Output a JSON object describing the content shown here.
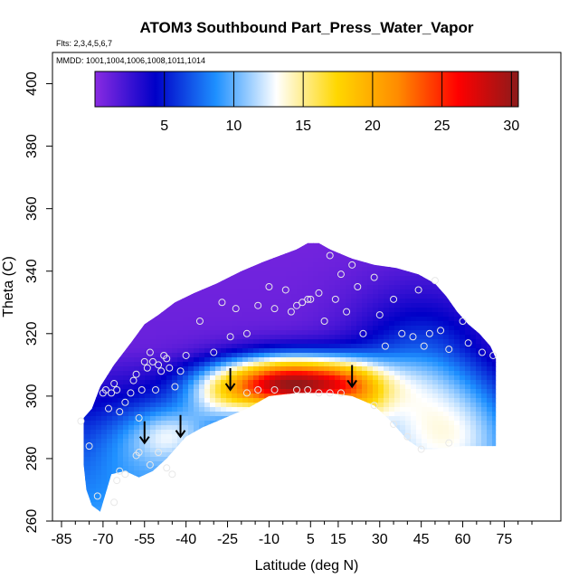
{
  "chart_data": {
    "type": "heatmap",
    "title": "ATOM3 Southbound Part_Press_Water_Vapor",
    "flights_note": "Flts: 2,3,4,5,6,7",
    "dates_note": "MMDD: 1001,1004,1006,1008,1011,1014",
    "xlabel": "Latitude (deg N)",
    "ylabel": "Theta (C)",
    "xlim": [
      -85,
      85
    ],
    "ylim": [
      260,
      410
    ],
    "x_ticks": [
      -85,
      -70,
      -55,
      -40,
      -25,
      -10,
      5,
      15,
      30,
      45,
      60,
      75
    ],
    "x_tick_labels": [
      "-85",
      "-70",
      "-55",
      "-40",
      "-25",
      "-10",
      "5",
      "15",
      "30",
      "45",
      "60",
      "75"
    ],
    "y_ticks": [
      260,
      280,
      300,
      320,
      340,
      360,
      380,
      400
    ],
    "y_tick_labels": [
      "260",
      "280",
      "300",
      "320",
      "340",
      "360",
      "380",
      "400"
    ],
    "colorbar": {
      "range": [
        0,
        30.5
      ],
      "ticks": [
        5,
        10,
        15,
        20,
        25,
        30
      ],
      "tick_labels": [
        "5",
        "10",
        "15",
        "20",
        "25",
        "30"
      ],
      "colors": [
        "#8a2be2",
        "#0000c8",
        "#1e90ff",
        "#ffffff",
        "#ffd700",
        "#ff8c00",
        "#ff0000",
        "#8b1a1a"
      ]
    },
    "grid": false,
    "domain_boundary": {
      "top": [
        [
          -77,
          293
        ],
        [
          -74,
          296
        ],
        [
          -71,
          303
        ],
        [
          -66,
          310
        ],
        [
          -60,
          317
        ],
        [
          -55,
          323
        ],
        [
          -50,
          326
        ],
        [
          -44,
          330
        ],
        [
          -37,
          333
        ],
        [
          -29,
          336
        ],
        [
          -20,
          340
        ],
        [
          -12,
          343
        ],
        [
          -6,
          345
        ],
        [
          0,
          347
        ],
        [
          4,
          349
        ],
        [
          8,
          349
        ],
        [
          12,
          347
        ],
        [
          20,
          344
        ],
        [
          28,
          342
        ],
        [
          36,
          341
        ],
        [
          44,
          339
        ],
        [
          50,
          336
        ],
        [
          54,
          332
        ],
        [
          58,
          327
        ],
        [
          62,
          323
        ],
        [
          66,
          320
        ],
        [
          70,
          316
        ],
        [
          72,
          312
        ]
      ],
      "bottom": [
        [
          72,
          284
        ],
        [
          60,
          284
        ],
        [
          50,
          283
        ],
        [
          45,
          283
        ],
        [
          40,
          286
        ],
        [
          34,
          292
        ],
        [
          28,
          297
        ],
        [
          20,
          300
        ],
        [
          12,
          301
        ],
        [
          0,
          301
        ],
        [
          -10,
          300
        ],
        [
          -18,
          296
        ],
        [
          -26,
          293
        ],
        [
          -34,
          290
        ],
        [
          -40,
          287
        ],
        [
          -47,
          280
        ],
        [
          -52,
          276
        ],
        [
          -57,
          274
        ],
        [
          -62,
          276
        ],
        [
          -67,
          275
        ],
        [
          -70,
          266
        ],
        [
          -71,
          263
        ],
        [
          -74,
          265
        ],
        [
          -76,
          270
        ],
        [
          -77,
          278
        ]
      ]
    },
    "field_model": [
      {
        "x": -2,
        "y": 304,
        "sx": 19,
        "sy": 6,
        "value": 27
      },
      {
        "x": 19,
        "y": 304,
        "sx": 8,
        "sy": 5,
        "value": 4
      },
      {
        "x": -28,
        "y": 299,
        "sx": 9,
        "sy": 6,
        "value": 4
      },
      {
        "x": -45,
        "y": 288,
        "sx": 10,
        "sy": 6,
        "value": 5
      },
      {
        "x": 25,
        "y": 296,
        "sx": 6,
        "sy": 5,
        "value": 3
      },
      {
        "x": 45,
        "y": 300,
        "sx": 18,
        "sy": 20,
        "value": 8
      },
      {
        "x": 62,
        "y": 288,
        "sx": 12,
        "sy": 10,
        "value": 3
      },
      {
        "x": -55,
        "y": 284,
        "sx": 14,
        "sy": 10,
        "value": 3
      }
    ],
    "sample_points": [
      [
        -78,
        292
      ],
      [
        -75,
        284
      ],
      [
        -70,
        301
      ],
      [
        -69,
        302
      ],
      [
        -68,
        296
      ],
      [
        -67,
        301
      ],
      [
        -66,
        304
      ],
      [
        -65,
        302
      ],
      [
        -64,
        295
      ],
      [
        -62,
        298
      ],
      [
        -60,
        301
      ],
      [
        -59,
        305
      ],
      [
        -58,
        307
      ],
      [
        -57,
        293
      ],
      [
        -56,
        302
      ],
      [
        -55,
        311
      ],
      [
        -54,
        309
      ],
      [
        -53,
        314
      ],
      [
        -52,
        311
      ],
      [
        -51,
        302
      ],
      [
        -50,
        310
      ],
      [
        -49,
        308
      ],
      [
        -48,
        313
      ],
      [
        -47,
        312
      ],
      [
        -46,
        309
      ],
      [
        -44,
        303
      ],
      [
        -42,
        308
      ],
      [
        -40,
        313
      ],
      [
        -35,
        324
      ],
      [
        -30,
        314
      ],
      [
        -27,
        330
      ],
      [
        -24,
        319
      ],
      [
        -22,
        328
      ],
      [
        -18,
        320
      ],
      [
        -14,
        329
      ],
      [
        -10,
        335
      ],
      [
        -8,
        328
      ],
      [
        -4,
        334
      ],
      [
        -2,
        327
      ],
      [
        0,
        329
      ],
      [
        2,
        330
      ],
      [
        4,
        331
      ],
      [
        5,
        331
      ],
      [
        8,
        333
      ],
      [
        10,
        324
      ],
      [
        12,
        345
      ],
      [
        14,
        331
      ],
      [
        16,
        339
      ],
      [
        18,
        327
      ],
      [
        20,
        342
      ],
      [
        22,
        335
      ],
      [
        24,
        320
      ],
      [
        28,
        338
      ],
      [
        30,
        326
      ],
      [
        32,
        316
      ],
      [
        35,
        331
      ],
      [
        38,
        320
      ],
      [
        42,
        319
      ],
      [
        44,
        334
      ],
      [
        46,
        316
      ],
      [
        48,
        320
      ],
      [
        50,
        337
      ],
      [
        52,
        321
      ],
      [
        55,
        315
      ],
      [
        60,
        324
      ],
      [
        62,
        317
      ],
      [
        67,
        314
      ],
      [
        71,
        313
      ],
      [
        -58,
        281
      ],
      [
        -57,
        282
      ],
      [
        -53,
        278
      ],
      [
        -50,
        282
      ],
      [
        -47,
        277
      ],
      [
        -45,
        275
      ],
      [
        -64,
        276
      ],
      [
        -62,
        275
      ],
      [
        -65,
        273
      ],
      [
        -66,
        266
      ],
      [
        -72,
        268
      ],
      [
        -18,
        301
      ],
      [
        -14,
        302
      ],
      [
        -8,
        302
      ],
      [
        0,
        302
      ],
      [
        4,
        302
      ],
      [
        8,
        301
      ],
      [
        12,
        301
      ],
      [
        16,
        301
      ],
      [
        28,
        297
      ],
      [
        35,
        291
      ],
      [
        40,
        287
      ],
      [
        45,
        283
      ],
      [
        55,
        285
      ]
    ],
    "arrows": [
      [
        -55,
        285
      ],
      [
        -42,
        287
      ],
      [
        -24,
        302
      ],
      [
        20,
        303
      ]
    ]
  }
}
